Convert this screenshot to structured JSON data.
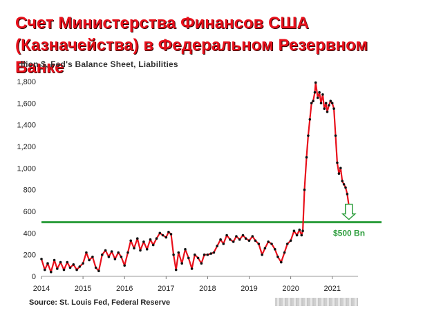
{
  "header": {
    "title": "Счет Министерства Финансов США (Казначейства) в Федеральном Резервном Банке",
    "subtitle": "llion $, Fed's Balance Sheet, Liabilities"
  },
  "footer": {
    "source": "Source: St. Louis Fed, Federal Reserve"
  },
  "colors": {
    "line": "#e8101b",
    "markers": "#111111",
    "threshold": "#2e9e3e",
    "title": "#e8101b"
  },
  "chart_data": {
    "type": "line",
    "title": "Счет Министерства Финансов США (Казначейства) в Федеральном Резервном Банке",
    "xlabel": "",
    "ylabel": "",
    "xlim": [
      2014.0,
      2021.62
    ],
    "ylim": [
      0,
      1800
    ],
    "x_ticks": [
      "2014",
      "2015",
      "2016",
      "2017",
      "2018",
      "2019",
      "2020",
      "2021"
    ],
    "y_ticks": [
      "0",
      "200",
      "400",
      "600",
      "800",
      "1,000",
      "1,200",
      "1,400",
      "1,600",
      "1,800"
    ],
    "grid": false,
    "threshold": {
      "value": 500,
      "label": "$500 Bn"
    },
    "series": [
      {
        "name": "",
        "points": [
          [
            2014.0,
            160
          ],
          [
            2014.08,
            60
          ],
          [
            2014.15,
            120
          ],
          [
            2014.23,
            40
          ],
          [
            2014.31,
            150
          ],
          [
            2014.38,
            70
          ],
          [
            2014.46,
            130
          ],
          [
            2014.54,
            60
          ],
          [
            2014.62,
            130
          ],
          [
            2014.69,
            80
          ],
          [
            2014.77,
            110
          ],
          [
            2014.85,
            60
          ],
          [
            2014.92,
            90
          ],
          [
            2015.0,
            120
          ],
          [
            2015.08,
            220
          ],
          [
            2015.15,
            150
          ],
          [
            2015.23,
            180
          ],
          [
            2015.31,
            80
          ],
          [
            2015.38,
            50
          ],
          [
            2015.46,
            200
          ],
          [
            2015.54,
            240
          ],
          [
            2015.62,
            180
          ],
          [
            2015.69,
            230
          ],
          [
            2015.77,
            160
          ],
          [
            2015.85,
            220
          ],
          [
            2015.92,
            180
          ],
          [
            2016.0,
            100
          ],
          [
            2016.08,
            220
          ],
          [
            2016.15,
            330
          ],
          [
            2016.23,
            260
          ],
          [
            2016.31,
            350
          ],
          [
            2016.38,
            240
          ],
          [
            2016.46,
            320
          ],
          [
            2016.54,
            250
          ],
          [
            2016.62,
            340
          ],
          [
            2016.69,
            290
          ],
          [
            2016.77,
            350
          ],
          [
            2016.85,
            400
          ],
          [
            2016.92,
            380
          ],
          [
            2017.0,
            360
          ],
          [
            2017.06,
            410
          ],
          [
            2017.12,
            390
          ],
          [
            2017.18,
            200
          ],
          [
            2017.24,
            60
          ],
          [
            2017.3,
            220
          ],
          [
            2017.38,
            120
          ],
          [
            2017.46,
            250
          ],
          [
            2017.54,
            170
          ],
          [
            2017.62,
            70
          ],
          [
            2017.69,
            200
          ],
          [
            2017.77,
            170
          ],
          [
            2017.85,
            120
          ],
          [
            2017.92,
            200
          ],
          [
            2018.0,
            200
          ],
          [
            2018.08,
            210
          ],
          [
            2018.15,
            220
          ],
          [
            2018.23,
            280
          ],
          [
            2018.31,
            340
          ],
          [
            2018.38,
            300
          ],
          [
            2018.46,
            380
          ],
          [
            2018.54,
            340
          ],
          [
            2018.62,
            320
          ],
          [
            2018.69,
            370
          ],
          [
            2018.77,
            340
          ],
          [
            2018.85,
            380
          ],
          [
            2018.92,
            350
          ],
          [
            2019.0,
            330
          ],
          [
            2019.08,
            370
          ],
          [
            2019.15,
            330
          ],
          [
            2019.23,
            300
          ],
          [
            2019.31,
            200
          ],
          [
            2019.38,
            260
          ],
          [
            2019.46,
            320
          ],
          [
            2019.54,
            300
          ],
          [
            2019.62,
            250
          ],
          [
            2019.69,
            180
          ],
          [
            2019.77,
            130
          ],
          [
            2019.85,
            220
          ],
          [
            2019.92,
            300
          ],
          [
            2020.0,
            330
          ],
          [
            2020.08,
            420
          ],
          [
            2020.15,
            380
          ],
          [
            2020.21,
            430
          ],
          [
            2020.26,
            380
          ],
          [
            2020.29,
            420
          ],
          [
            2020.33,
            800
          ],
          [
            2020.38,
            1100
          ],
          [
            2020.42,
            1300
          ],
          [
            2020.46,
            1450
          ],
          [
            2020.5,
            1600
          ],
          [
            2020.54,
            1620
          ],
          [
            2020.58,
            1700
          ],
          [
            2020.6,
            1790
          ],
          [
            2020.65,
            1650
          ],
          [
            2020.69,
            1700
          ],
          [
            2020.73,
            1600
          ],
          [
            2020.77,
            1680
          ],
          [
            2020.81,
            1550
          ],
          [
            2020.85,
            1600
          ],
          [
            2020.88,
            1520
          ],
          [
            2020.92,
            1580
          ],
          [
            2020.96,
            1620
          ],
          [
            2021.0,
            1600
          ],
          [
            2021.04,
            1550
          ],
          [
            2021.08,
            1300
          ],
          [
            2021.12,
            1050
          ],
          [
            2021.16,
            950
          ],
          [
            2021.2,
            1000
          ],
          [
            2021.24,
            880
          ],
          [
            2021.28,
            850
          ],
          [
            2021.32,
            820
          ],
          [
            2021.36,
            760
          ],
          [
            2021.4,
            650
          ]
        ]
      }
    ]
  }
}
